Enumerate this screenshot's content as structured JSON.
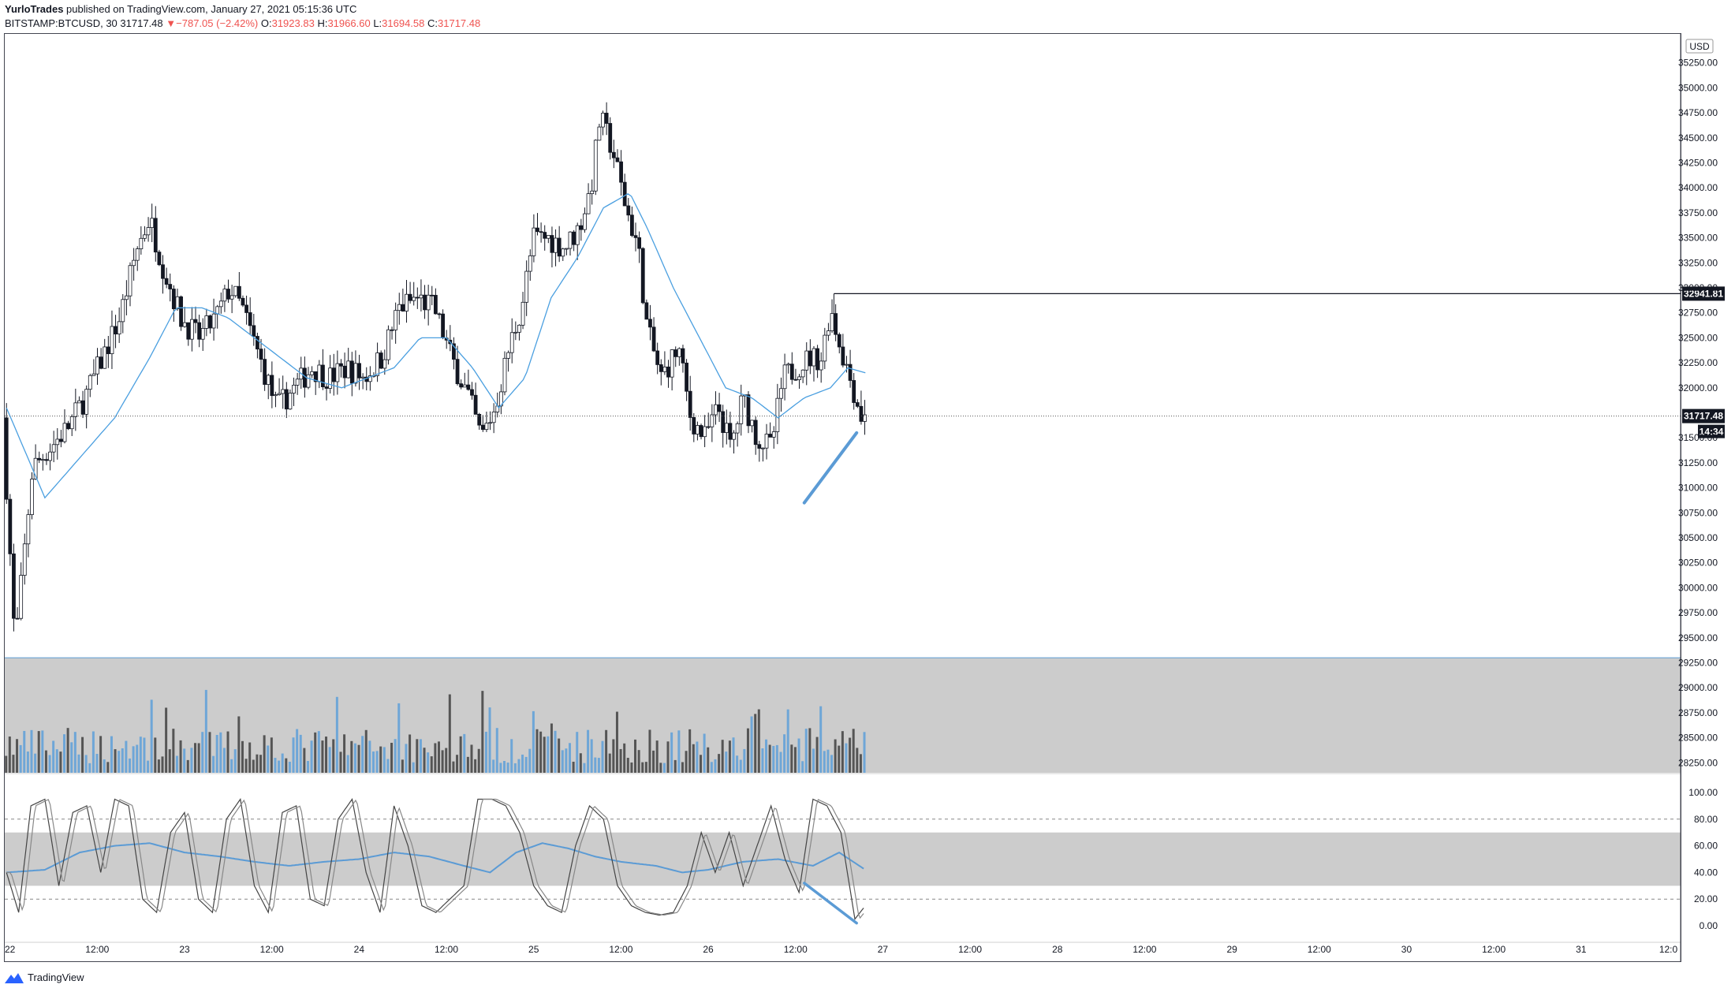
{
  "header": {
    "author": "YurloTrades",
    "published_text": " published on TradingView.com, January 27, 2021 05:15:36 UTC",
    "symbol": "BITSTAMP:BTCUSD, 30",
    "last": "31717.48",
    "change_arrow": "▼",
    "change": "−787.05 (−2.42%)",
    "o_label": "O:",
    "o_value": "31923.83",
    "h_label": "H:",
    "h_value": "31966.60",
    "l_label": "L:",
    "l_value": "31694.58",
    "c_label": "C:",
    "c_value": "31717.48"
  },
  "footer": {
    "brand": "TradingView"
  },
  "colors": {
    "candle": "#131722",
    "ma": "#4a9fe0",
    "trendline": "#5b9bd5",
    "vol_up": "#6ea6d7",
    "vol_down": "#555555",
    "zone": "#cccccc",
    "rsi": "#5b9bd5",
    "stoch": "#444444",
    "tag_bg": "#131722"
  },
  "chart_data": {
    "type": "candlestick",
    "currency_label": "USD",
    "y_ticks": [
      "35250.00",
      "35000.00",
      "34750.00",
      "34500.00",
      "34250.00",
      "34000.00",
      "33750.00",
      "33500.00",
      "33250.00",
      "33000.00",
      "32750.00",
      "32500.00",
      "32250.00",
      "32000.00",
      "31500.00",
      "31250.00",
      "31000.00",
      "30750.00",
      "30500.00",
      "30250.00",
      "30000.00",
      "29750.00",
      "29500.00",
      "29250.00",
      "29000.00",
      "28750.00",
      "28500.00",
      "28250.00"
    ],
    "ylim": [
      28150,
      35500
    ],
    "x_ticks": [
      "22",
      "12:00",
      "23",
      "12:00",
      "24",
      "12:00",
      "25",
      "12:00",
      "26",
      "12:00",
      "27",
      "12:00",
      "28",
      "12:00",
      "29",
      "12:00",
      "30",
      "12:00",
      "31",
      "12:0"
    ],
    "x_range_days": [
      21.97,
      31.57
    ],
    "price_anchors": [
      [
        21.98,
        31700
      ],
      [
        22.05,
        29400
      ],
      [
        22.15,
        31200
      ],
      [
        22.25,
        31400
      ],
      [
        22.35,
        31600
      ],
      [
        22.45,
        31900
      ],
      [
        22.55,
        32300
      ],
      [
        22.65,
        32700
      ],
      [
        22.75,
        33400
      ],
      [
        22.82,
        33700
      ],
      [
        22.9,
        33200
      ],
      [
        23.0,
        32700
      ],
      [
        23.1,
        32500
      ],
      [
        23.2,
        32700
      ],
      [
        23.28,
        33000
      ],
      [
        23.35,
        32800
      ],
      [
        23.45,
        32300
      ],
      [
        23.55,
        31800
      ],
      [
        23.65,
        32000
      ],
      [
        23.75,
        32200
      ],
      [
        23.85,
        32100
      ],
      [
        23.95,
        32200
      ],
      [
        24.05,
        32100
      ],
      [
        24.15,
        32300
      ],
      [
        24.25,
        32800
      ],
      [
        24.35,
        32900
      ],
      [
        24.45,
        32800
      ],
      [
        24.55,
        32300
      ],
      [
        24.65,
        31900
      ],
      [
        24.72,
        31500
      ],
      [
        24.8,
        31800
      ],
      [
        24.88,
        32400
      ],
      [
        24.95,
        32800
      ],
      [
        25.02,
        33500
      ],
      [
        25.1,
        33500
      ],
      [
        25.2,
        33400
      ],
      [
        25.28,
        33600
      ],
      [
        25.35,
        34000
      ],
      [
        25.4,
        34700
      ],
      [
        25.47,
        34400
      ],
      [
        25.55,
        33800
      ],
      [
        25.62,
        33400
      ],
      [
        25.67,
        32600
      ],
      [
        25.75,
        32100
      ],
      [
        25.85,
        32400
      ],
      [
        25.92,
        31700
      ],
      [
        26.0,
        31500
      ],
      [
        26.08,
        31800
      ],
      [
        26.15,
        31400
      ],
      [
        26.22,
        31900
      ],
      [
        26.3,
        31500
      ],
      [
        26.38,
        31400
      ],
      [
        26.45,
        32100
      ],
      [
        26.52,
        32200
      ],
      [
        26.6,
        32300
      ],
      [
        26.67,
        32300
      ],
      [
        26.72,
        32800
      ],
      [
        26.78,
        32400
      ],
      [
        26.85,
        32000
      ],
      [
        26.9,
        31700
      ]
    ],
    "ma_anchors": [
      [
        21.98,
        31800
      ],
      [
        22.2,
        30900
      ],
      [
        22.4,
        31300
      ],
      [
        22.6,
        31700
      ],
      [
        22.8,
        32300
      ],
      [
        22.95,
        32800
      ],
      [
        23.1,
        32800
      ],
      [
        23.25,
        32700
      ],
      [
        23.4,
        32500
      ],
      [
        23.55,
        32300
      ],
      [
        23.7,
        32100
      ],
      [
        23.9,
        32000
      ],
      [
        24.05,
        32100
      ],
      [
        24.2,
        32200
      ],
      [
        24.35,
        32500
      ],
      [
        24.5,
        32500
      ],
      [
        24.65,
        32200
      ],
      [
        24.8,
        31800
      ],
      [
        24.95,
        32100
      ],
      [
        25.1,
        32900
      ],
      [
        25.25,
        33300
      ],
      [
        25.4,
        33800
      ],
      [
        25.55,
        33950
      ],
      [
        25.65,
        33600
      ],
      [
        25.8,
        33000
      ],
      [
        25.95,
        32500
      ],
      [
        26.1,
        32000
      ],
      [
        26.25,
        31900
      ],
      [
        26.4,
        31700
      ],
      [
        26.55,
        31900
      ],
      [
        26.7,
        32000
      ],
      [
        26.8,
        32200
      ],
      [
        26.9,
        32150
      ]
    ],
    "resistance_level": {
      "value": 32941.81,
      "label": "32941.81",
      "from_day": 26.72
    },
    "last_price": {
      "value": 31717.48,
      "label": "31717.48",
      "countdown": "14:34"
    },
    "price_trendline": {
      "from": [
        26.55,
        30850
      ],
      "to": [
        26.85,
        31550
      ]
    },
    "volume_zone": {
      "from": 28150,
      "to": 29300
    },
    "oscillator": {
      "ticks": [
        "100.00",
        "80.00",
        "60.00",
        "40.00",
        "20.00",
        "0.00"
      ],
      "levels": [
        80,
        20
      ],
      "band": [
        70,
        30
      ],
      "trendline": {
        "from": [
          26.55,
          32
        ],
        "to": [
          26.85,
          2
        ]
      },
      "rsi_anchors": [
        [
          21.98,
          40
        ],
        [
          22.2,
          42
        ],
        [
          22.4,
          55
        ],
        [
          22.6,
          60
        ],
        [
          22.8,
          62
        ],
        [
          23.0,
          55
        ],
        [
          23.2,
          52
        ],
        [
          23.4,
          48
        ],
        [
          23.6,
          45
        ],
        [
          23.8,
          48
        ],
        [
          24.0,
          50
        ],
        [
          24.2,
          55
        ],
        [
          24.4,
          52
        ],
        [
          24.6,
          45
        ],
        [
          24.75,
          40
        ],
        [
          24.9,
          55
        ],
        [
          25.05,
          62
        ],
        [
          25.2,
          58
        ],
        [
          25.35,
          52
        ],
        [
          25.5,
          48
        ],
        [
          25.7,
          45
        ],
        [
          25.85,
          40
        ],
        [
          26.0,
          42
        ],
        [
          26.2,
          48
        ],
        [
          26.4,
          50
        ],
        [
          26.6,
          45
        ],
        [
          26.75,
          55
        ],
        [
          26.9,
          42
        ]
      ],
      "stoch_anchors": [
        [
          21.98,
          40
        ],
        [
          22.05,
          10
        ],
        [
          22.12,
          90
        ],
        [
          22.2,
          95
        ],
        [
          22.28,
          30
        ],
        [
          22.36,
          85
        ],
        [
          22.44,
          90
        ],
        [
          22.52,
          40
        ],
        [
          22.6,
          95
        ],
        [
          22.68,
          90
        ],
        [
          22.76,
          20
        ],
        [
          22.84,
          10
        ],
        [
          22.92,
          70
        ],
        [
          23.0,
          85
        ],
        [
          23.08,
          20
        ],
        [
          23.16,
          10
        ],
        [
          23.24,
          80
        ],
        [
          23.32,
          95
        ],
        [
          23.4,
          30
        ],
        [
          23.48,
          10
        ],
        [
          23.56,
          85
        ],
        [
          23.64,
          90
        ],
        [
          23.72,
          20
        ],
        [
          23.8,
          15
        ],
        [
          23.88,
          80
        ],
        [
          23.96,
          95
        ],
        [
          24.04,
          40
        ],
        [
          24.12,
          10
        ],
        [
          24.2,
          90
        ],
        [
          24.28,
          60
        ],
        [
          24.36,
          15
        ],
        [
          24.44,
          10
        ],
        [
          24.52,
          20
        ],
        [
          24.6,
          30
        ],
        [
          24.68,
          95
        ],
        [
          24.76,
          95
        ],
        [
          24.84,
          90
        ],
        [
          24.92,
          70
        ],
        [
          25.0,
          30
        ],
        [
          25.08,
          15
        ],
        [
          25.16,
          10
        ],
        [
          25.24,
          60
        ],
        [
          25.32,
          90
        ],
        [
          25.4,
          80
        ],
        [
          25.48,
          30
        ],
        [
          25.56,
          15
        ],
        [
          25.64,
          10
        ],
        [
          25.72,
          8
        ],
        [
          25.8,
          10
        ],
        [
          25.88,
          30
        ],
        [
          25.96,
          70
        ],
        [
          26.04,
          40
        ],
        [
          26.12,
          70
        ],
        [
          26.2,
          30
        ],
        [
          26.28,
          60
        ],
        [
          26.36,
          90
        ],
        [
          26.44,
          50
        ],
        [
          26.52,
          25
        ],
        [
          26.6,
          95
        ],
        [
          26.68,
          90
        ],
        [
          26.76,
          70
        ],
        [
          26.84,
          5
        ],
        [
          26.9,
          15
        ]
      ]
    },
    "volume_seed": 7
  }
}
